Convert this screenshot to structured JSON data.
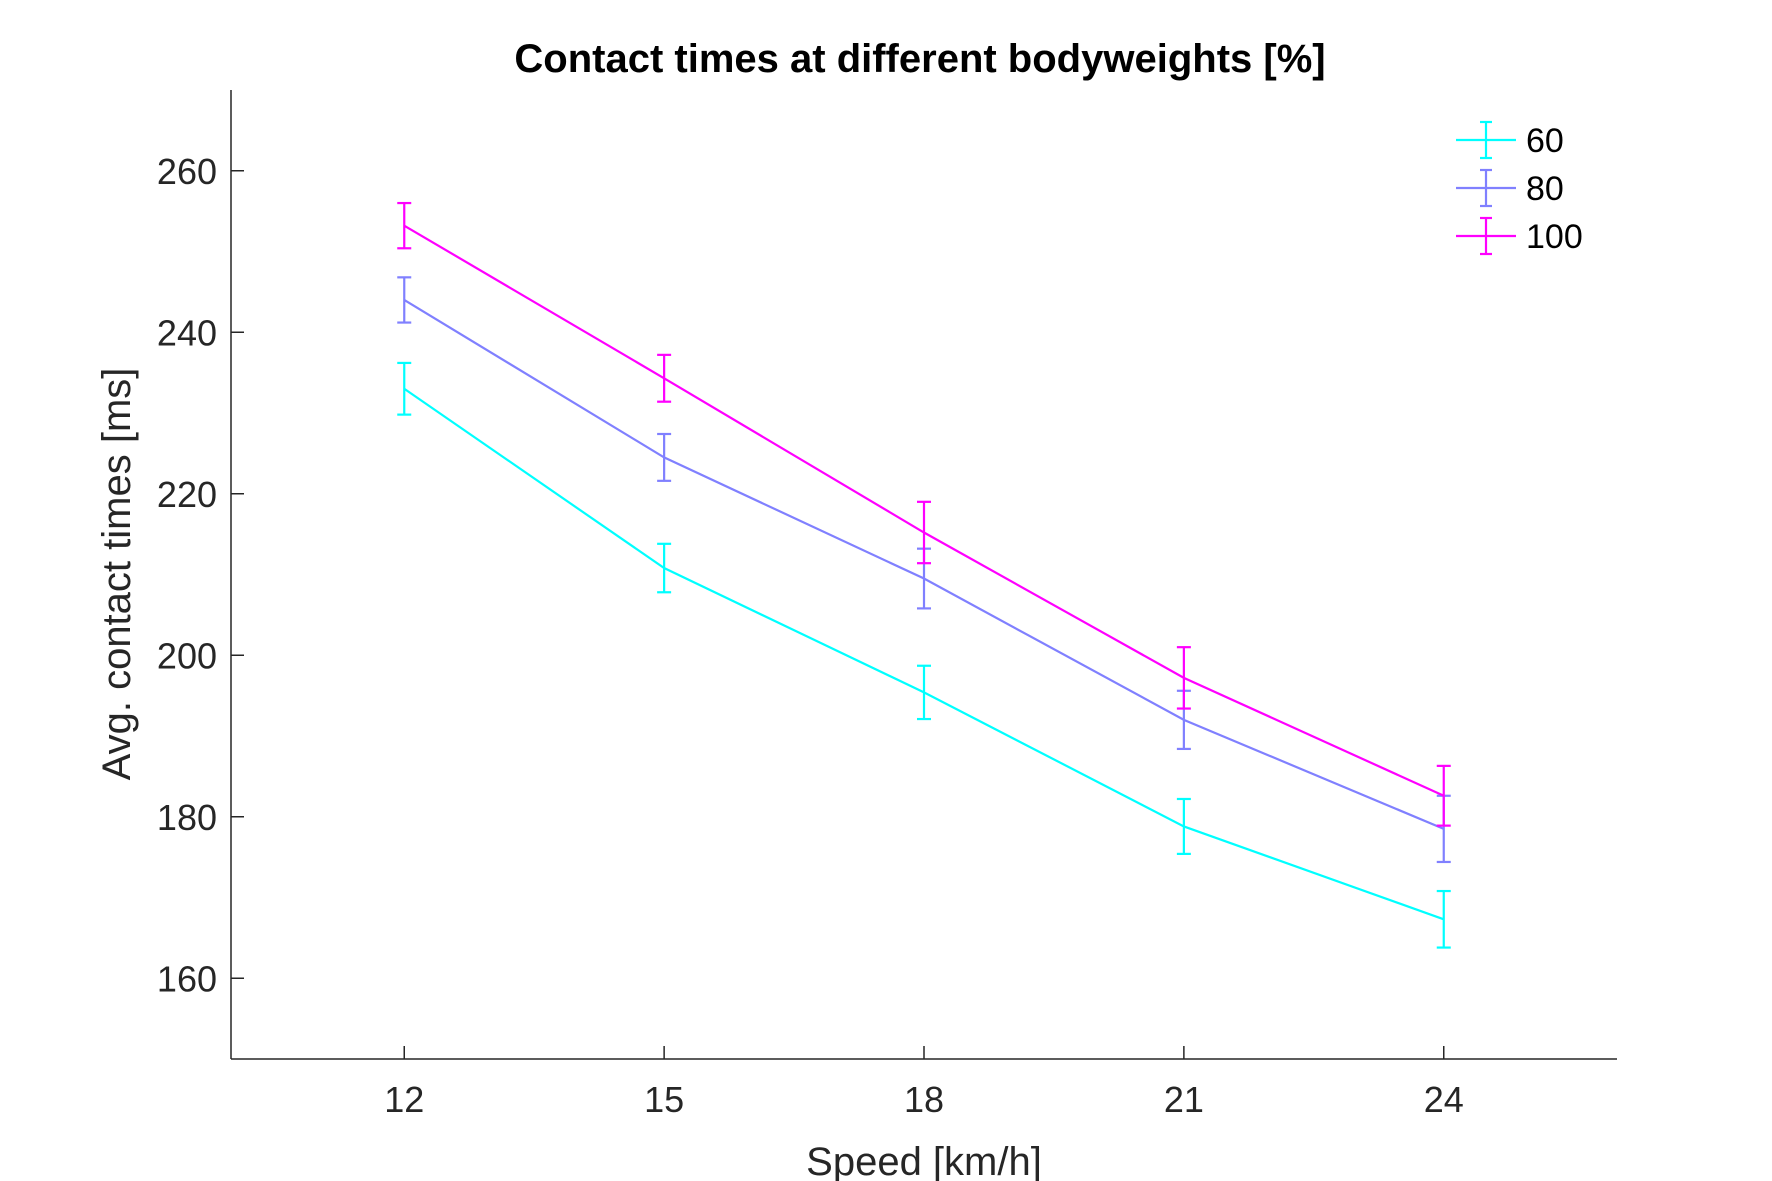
{
  "chart_data": {
    "type": "line",
    "title": "Contact times at different bodyweights [%]",
    "xlabel": "Speed [km/h]",
    "ylabel": "Avg. contact times [ms]",
    "x": [
      12,
      15,
      18,
      21,
      24
    ],
    "xticks": [
      12,
      15,
      18,
      21,
      24
    ],
    "yticks": [
      160,
      180,
      200,
      220,
      240,
      260
    ],
    "xlim": [
      10,
      26
    ],
    "ylim": [
      150,
      270
    ],
    "grid": false,
    "legend_position": "top-right",
    "error_bars": true,
    "series": [
      {
        "name": "60",
        "color": "#00ffff",
        "values": [
          233.0,
          210.8,
          195.4,
          178.8,
          167.3
        ],
        "errors": [
          3.2,
          3.0,
          3.3,
          3.4,
          3.5
        ]
      },
      {
        "name": "80",
        "color": "#8080ff",
        "values": [
          244.0,
          224.5,
          209.5,
          192.0,
          178.5
        ],
        "errors": [
          2.8,
          2.9,
          3.7,
          3.6,
          4.1
        ]
      },
      {
        "name": "100",
        "color": "#ff00ff",
        "values": [
          253.2,
          234.3,
          215.2,
          197.2,
          182.6
        ],
        "errors": [
          2.8,
          2.9,
          3.8,
          3.8,
          3.7
        ]
      }
    ]
  }
}
